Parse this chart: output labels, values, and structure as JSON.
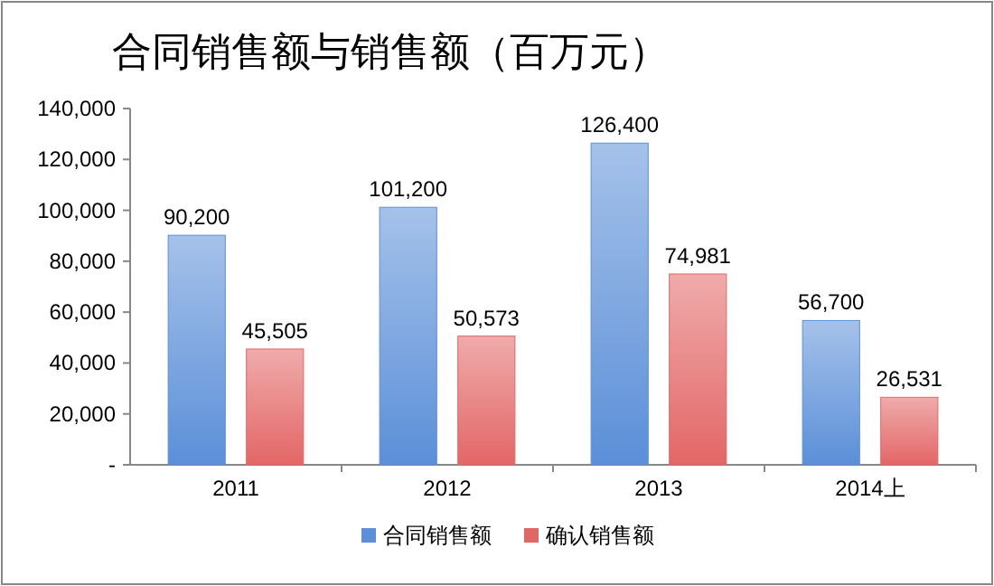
{
  "chart_data": {
    "type": "bar",
    "title": "合同销售额与销售额（百万元）",
    "categories": [
      "2011",
      "2012",
      "2013",
      "2014上"
    ],
    "series": [
      {
        "name": "合同销售额",
        "color": "#5b8fd8",
        "values": [
          90200,
          101200,
          126400,
          56700
        ],
        "value_labels": [
          "90,200",
          "101,200",
          "126,400",
          "56,700"
        ]
      },
      {
        "name": "确认销售额",
        "color": "#e36666",
        "values": [
          45505,
          50573,
          74981,
          26531
        ],
        "value_labels": [
          "45,505",
          "50,573",
          "74,981",
          "26,531"
        ]
      }
    ],
    "ylim": [
      0,
      140000
    ],
    "yticks": [
      {
        "value": 0,
        "label": "-"
      },
      {
        "value": 20000,
        "label": "20,000"
      },
      {
        "value": 40000,
        "label": "40,000"
      },
      {
        "value": 60000,
        "label": "60,000"
      },
      {
        "value": 80000,
        "label": "80,000"
      },
      {
        "value": 100000,
        "label": "100,000"
      },
      {
        "value": 120000,
        "label": "120,000"
      },
      {
        "value": 140000,
        "label": "140,000"
      }
    ],
    "grid": false,
    "legend": "bottom"
  }
}
